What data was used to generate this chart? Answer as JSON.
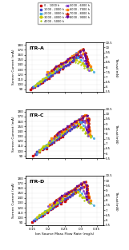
{
  "legend_entries": [
    {
      "label": "0 -  1000 h",
      "color": "#cc0000",
      "marker": "s",
      "ls": "none"
    },
    {
      "label": "1000 - 2000 h",
      "color": "#4444cc",
      "marker": "s",
      "ls": "none"
    },
    {
      "label": "2000 - 3000 h",
      "color": "#44aadd",
      "marker": "x",
      "ls": "-"
    },
    {
      "label": "3000 - 4000 h",
      "color": "#cccc00",
      "marker": "o",
      "ls": "-"
    },
    {
      "label": "4000 - 5000 h",
      "color": "#aacc00",
      "marker": "+",
      "ls": "none"
    },
    {
      "label": "5000 - 6000 h",
      "color": "#8844cc",
      "marker": "x",
      "ls": "-"
    },
    {
      "label": "6000 - 7000 h",
      "color": "#ff8800",
      "marker": "s",
      "ls": "-"
    },
    {
      "label": "7000 - 8000 h",
      "color": "#cc2200",
      "marker": "^",
      "ls": "-"
    },
    {
      "label": "8000 - 9000 h",
      "color": "#660099",
      "marker": "v",
      "ls": "-"
    }
  ],
  "panels": [
    {
      "title": "ITR-A",
      "ylabel_left": "Screen Current (mA)",
      "ylabel_right": "Thrust(mN)"
    },
    {
      "title": "ITR-C",
      "ylabel_left": "Screen Current (mA)",
      "ylabel_right": "Thrust(mN)"
    },
    {
      "title": "ITR-D",
      "ylabel_left": "Screen Current (mA)",
      "ylabel_right": "Thrust(mN)"
    }
  ],
  "xlabel": "Ion Source Mass Flow Rate (mg/s)",
  "xlim": [
    0.13,
    0.37
  ],
  "ylim_left": [
    85,
    185
  ],
  "ylim_right": [
    5.5,
    10.5
  ],
  "background_color": "#ffffff",
  "grid_color": "#dddddd"
}
